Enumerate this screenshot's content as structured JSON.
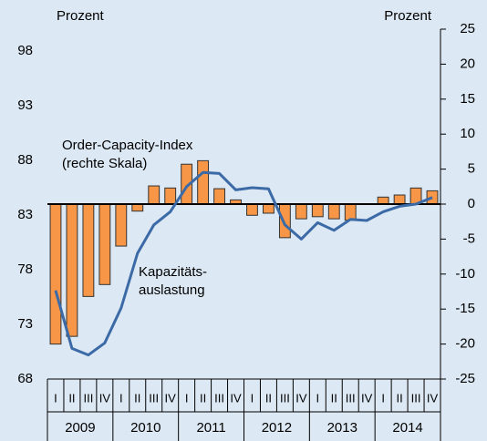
{
  "chart_data": {
    "type": "bar_line",
    "categories": [
      "I",
      "II",
      "III",
      "IV",
      "I",
      "II",
      "III",
      "IV",
      "I",
      "II",
      "III",
      "IV",
      "I",
      "II",
      "III",
      "IV",
      "I",
      "II",
      "III",
      "IV",
      "I",
      "II",
      "III",
      "IV"
    ],
    "x_groups": [
      "2009",
      "2010",
      "2011",
      "2012",
      "2013",
      "2014"
    ],
    "series": [
      {
        "type": "bar",
        "axis": "y2",
        "color": "#f79646",
        "values": [
          -20,
          -18.9,
          -13.2,
          -11.5,
          -6,
          -1,
          2.6,
          2.3,
          5.7,
          6.2,
          2.2,
          0.6,
          -1.6,
          -1.3,
          -4.8,
          -2.1,
          -1.8,
          -2.1,
          -2.3,
          0,
          1.0,
          1.3,
          2.3,
          1.9
        ]
      },
      {
        "type": "line",
        "axis": "y",
        "color": "#3b6aa6",
        "values": [
          76.1,
          70.8,
          70.2,
          71.3,
          74.5,
          79.5,
          82.1,
          83.3,
          85.6,
          86.9,
          86.8,
          85.3,
          85.5,
          85.4,
          82.1,
          80.8,
          82.3,
          81.6,
          82.6,
          82.5,
          83.3,
          83.8,
          84.0,
          84.6
        ]
      }
    ],
    "annotations": [
      [
        "Order-Capacity-Index",
        "(rechte Skala)"
      ],
      [
        "Kapazitäts-",
        "auslastung"
      ]
    ],
    "y_label": "Prozent",
    "y2_label": "Prozent",
    "ylim": [
      68,
      100
    ],
    "yticks": [
      68,
      73,
      78,
      83,
      88,
      93,
      98
    ],
    "y2lim": [
      -25,
      25
    ],
    "y2ticks": [
      -25,
      -20,
      -15,
      -10,
      -5,
      0,
      5,
      10,
      15,
      20,
      25
    ]
  }
}
